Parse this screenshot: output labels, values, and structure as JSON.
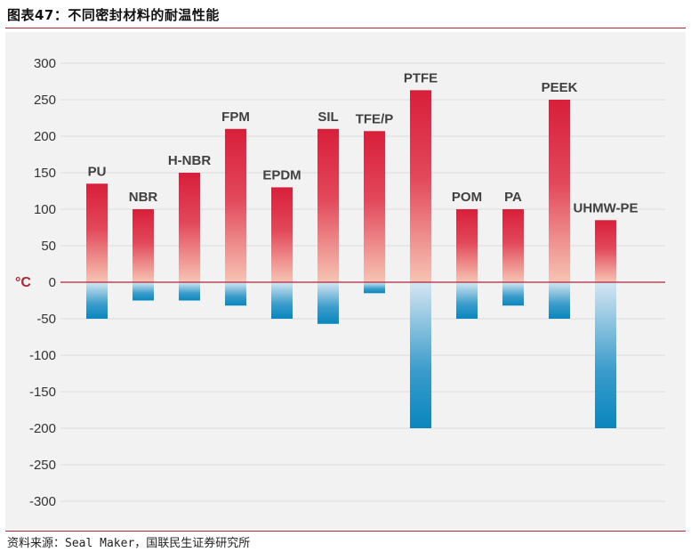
{
  "header": {
    "title": "图表47：不同密封材料的耐温性能"
  },
  "footer": {
    "source": "资料来源：Seal Maker，国联民生证券研究所"
  },
  "colors": {
    "hot_top": "#d81f3a",
    "hot_bottom": "#f7c4b4",
    "cold_top": "#d6e6f2",
    "cold_bottom": "#0a86bd",
    "zero_line": "#a8263a",
    "rule": "#b3263a"
  },
  "chart_data": {
    "type": "bar",
    "title": "",
    "xlabel": "",
    "ylabel": "°C",
    "ylim": [
      -330,
      330
    ],
    "yticks": [
      300,
      250,
      200,
      150,
      100,
      50,
      0,
      -50,
      -100,
      -150,
      -200,
      -250,
      -300
    ],
    "grid": true,
    "categories": [
      "PU",
      "NBR",
      "H-NBR",
      "FPM",
      "EPDM",
      "SIL",
      "TFE/P",
      "PTFE",
      "POM",
      "PA",
      "PEEK",
      "UHMW-PE"
    ],
    "series": [
      {
        "name": "",
        "values": [
          135,
          100,
          150,
          210,
          130,
          210,
          207,
          263,
          100,
          100,
          250,
          85
        ]
      },
      {
        "name": "",
        "values": [
          -50,
          -25,
          -25,
          -32,
          -50,
          -57,
          -15,
          -200,
          -50,
          -32,
          -50,
          -200
        ]
      }
    ]
  }
}
